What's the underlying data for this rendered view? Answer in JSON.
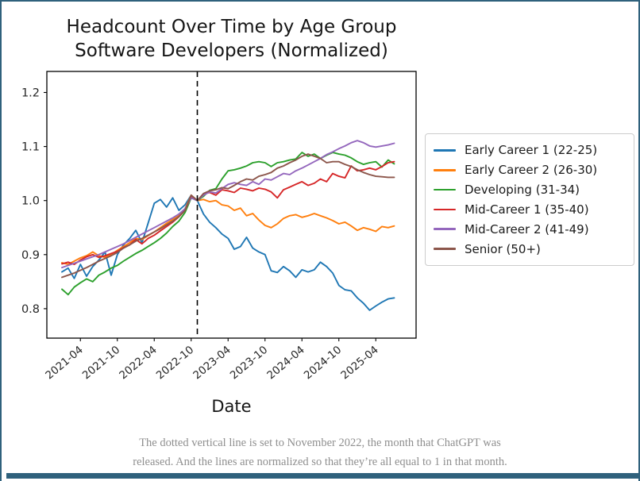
{
  "page": {
    "border_color": "#2f617c",
    "bottom_bar_color": "#2f617c"
  },
  "caption": {
    "line1": "The dotted vertical line is set to November 2022, the month that ChatGPT was",
    "line2": "released. And the lines are normalized so that they’re all equal to 1 in that month."
  },
  "chart_data": {
    "type": "line",
    "title": "Headcount Over Time by Age Group",
    "subtitle": "Software Developers (Normalized)",
    "xlabel": "Date",
    "ylabel": "",
    "grid": false,
    "legend_position": "right-outside",
    "ylim": [
      0.745,
      1.239
    ],
    "y_ticks": [
      0.8,
      0.9,
      1.0,
      1.1,
      1.2
    ],
    "x_tick_labels": [
      "2021-04",
      "2021-10",
      "2022-04",
      "2022-10",
      "2023-04",
      "2023-10",
      "2024-04",
      "2024-10",
      "2025-04"
    ],
    "vline": {
      "month": "2022-11",
      "color": "#000000",
      "style": "dashed"
    },
    "normalization_month": "2022-11",
    "x": [
      "2021-01",
      "2021-02",
      "2021-03",
      "2021-04",
      "2021-05",
      "2021-06",
      "2021-07",
      "2021-08",
      "2021-09",
      "2021-10",
      "2021-11",
      "2021-12",
      "2022-01",
      "2022-02",
      "2022-03",
      "2022-04",
      "2022-05",
      "2022-06",
      "2022-07",
      "2022-08",
      "2022-09",
      "2022-10",
      "2022-11",
      "2022-12",
      "2023-01",
      "2023-02",
      "2023-03",
      "2023-04",
      "2023-05",
      "2023-06",
      "2023-07",
      "2023-08",
      "2023-09",
      "2023-10",
      "2023-11",
      "2023-12",
      "2024-01",
      "2024-02",
      "2024-03",
      "2024-04",
      "2024-05",
      "2024-06",
      "2024-07",
      "2024-08",
      "2024-09",
      "2024-10",
      "2024-11",
      "2024-12",
      "2025-01",
      "2025-02",
      "2025-03",
      "2025-04",
      "2025-05",
      "2025-06",
      "2025-07"
    ],
    "series": [
      {
        "name": "Early Career 1 (22-25)",
        "color": "#1f77b4",
        "values": [
          0.868,
          0.875,
          0.856,
          0.882,
          0.86,
          0.878,
          0.89,
          0.905,
          0.862,
          0.9,
          0.918,
          0.93,
          0.945,
          0.922,
          0.958,
          0.995,
          1.002,
          0.988,
          1.005,
          0.982,
          0.992,
          1.01,
          1.0,
          0.975,
          0.96,
          0.95,
          0.938,
          0.93,
          0.91,
          0.915,
          0.932,
          0.912,
          0.905,
          0.9,
          0.87,
          0.867,
          0.878,
          0.87,
          0.858,
          0.872,
          0.868,
          0.872,
          0.886,
          0.878,
          0.866,
          0.843,
          0.835,
          0.833,
          0.82,
          0.81,
          0.797,
          0.805,
          0.812,
          0.818,
          0.82
        ]
      },
      {
        "name": "Early Career 2 (26-30)",
        "color": "#ff7f0e",
        "values": [
          0.885,
          0.882,
          0.888,
          0.894,
          0.898,
          0.905,
          0.898,
          0.895,
          0.9,
          0.908,
          0.915,
          0.922,
          0.93,
          0.928,
          0.935,
          0.942,
          0.95,
          0.958,
          0.965,
          0.972,
          0.985,
          1.01,
          1.0,
          1.002,
          0.998,
          1.0,
          0.992,
          0.99,
          0.982,
          0.986,
          0.972,
          0.976,
          0.964,
          0.954,
          0.95,
          0.957,
          0.967,
          0.972,
          0.974,
          0.969,
          0.972,
          0.976,
          0.972,
          0.968,
          0.963,
          0.957,
          0.96,
          0.953,
          0.945,
          0.95,
          0.947,
          0.943,
          0.952,
          0.95,
          0.953
        ]
      },
      {
        "name": "Developing (31-34)",
        "color": "#2ca02c",
        "values": [
          0.836,
          0.826,
          0.84,
          0.848,
          0.855,
          0.85,
          0.862,
          0.868,
          0.875,
          0.88,
          0.888,
          0.895,
          0.902,
          0.908,
          0.915,
          0.922,
          0.93,
          0.94,
          0.952,
          0.962,
          0.978,
          1.005,
          1.0,
          1.008,
          1.019,
          1.022,
          1.04,
          1.055,
          1.057,
          1.06,
          1.064,
          1.07,
          1.072,
          1.07,
          1.063,
          1.07,
          1.072,
          1.075,
          1.077,
          1.089,
          1.082,
          1.086,
          1.078,
          1.084,
          1.089,
          1.086,
          1.084,
          1.079,
          1.072,
          1.067,
          1.07,
          1.072,
          1.062,
          1.075,
          1.068
        ]
      },
      {
        "name": "Mid-Career 1 (35-40)",
        "color": "#d62728",
        "values": [
          0.883,
          0.886,
          0.882,
          0.89,
          0.896,
          0.9,
          0.895,
          0.898,
          0.902,
          0.906,
          0.913,
          0.918,
          0.928,
          0.92,
          0.93,
          0.936,
          0.944,
          0.952,
          0.96,
          0.97,
          0.982,
          1.008,
          1.0,
          1.012,
          1.015,
          1.01,
          1.02,
          1.018,
          1.015,
          1.023,
          1.021,
          1.018,
          1.023,
          1.021,
          1.016,
          1.005,
          1.02,
          1.025,
          1.03,
          1.035,
          1.028,
          1.032,
          1.04,
          1.035,
          1.05,
          1.045,
          1.042,
          1.064,
          1.055,
          1.057,
          1.06,
          1.057,
          1.063,
          1.07,
          1.072
        ]
      },
      {
        "name": "Mid-Career 2 (41-49)",
        "color": "#9467bd",
        "values": [
          0.876,
          0.88,
          0.884,
          0.888,
          0.892,
          0.896,
          0.9,
          0.905,
          0.91,
          0.915,
          0.92,
          0.926,
          0.932,
          0.938,
          0.944,
          0.95,
          0.956,
          0.962,
          0.968,
          0.975,
          0.985,
          1.005,
          1.0,
          1.01,
          1.016,
          1.014,
          1.022,
          1.03,
          1.033,
          1.03,
          1.028,
          1.035,
          1.03,
          1.04,
          1.038,
          1.044,
          1.05,
          1.048,
          1.055,
          1.06,
          1.066,
          1.072,
          1.078,
          1.085,
          1.09,
          1.096,
          1.101,
          1.107,
          1.111,
          1.107,
          1.101,
          1.099,
          1.101,
          1.103,
          1.106
        ]
      },
      {
        "name": "Senior (50+)",
        "color": "#8c564b",
        "values": [
          0.858,
          0.862,
          0.866,
          0.871,
          0.876,
          0.882,
          0.888,
          0.893,
          0.898,
          0.904,
          0.912,
          0.918,
          0.925,
          0.93,
          0.936,
          0.942,
          0.948,
          0.955,
          0.962,
          0.97,
          0.982,
          1.01,
          1.0,
          1.013,
          1.018,
          1.02,
          1.024,
          1.022,
          1.028,
          1.035,
          1.04,
          1.038,
          1.045,
          1.048,
          1.052,
          1.06,
          1.064,
          1.07,
          1.075,
          1.082,
          1.086,
          1.082,
          1.078,
          1.07,
          1.072,
          1.072,
          1.067,
          1.063,
          1.057,
          1.052,
          1.048,
          1.045,
          1.044,
          1.043,
          1.043
        ]
      }
    ]
  }
}
